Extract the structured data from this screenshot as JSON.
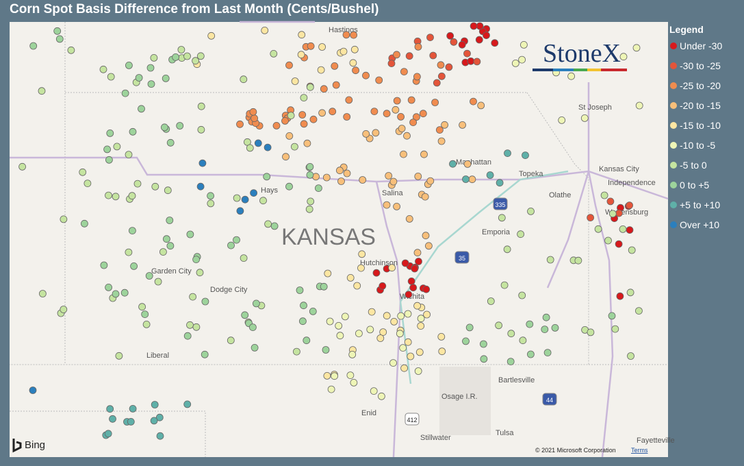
{
  "header": {
    "title": "Corn Spot Basis Difference from Last Month (Cents/Bushel)"
  },
  "legend": {
    "title": "Legend",
    "items": [
      {
        "label": "Under -30",
        "color": "#d7191c"
      },
      {
        "label": "-30 to -25",
        "color": "#e4553a"
      },
      {
        "label": "-25 to -20",
        "color": "#f08c4f"
      },
      {
        "label": "-20 to -15",
        "color": "#f8bf7a"
      },
      {
        "label": "-15 to -10",
        "color": "#fce6a2"
      },
      {
        "label": "-10 to -5",
        "color": "#eef5b6"
      },
      {
        "label": "-5 to 0",
        "color": "#c5e4a0"
      },
      {
        "label": "0 to +5",
        "color": "#9dd39b"
      },
      {
        "label": "+5 to +10",
        "color": "#5fb0a8"
      },
      {
        "label": "Over +10",
        "color": "#2b7fbd"
      }
    ]
  },
  "map": {
    "state_label": "KANSAS",
    "places": [
      "Hastings",
      "St Joseph",
      "Kansas City",
      "Independence",
      "Hays",
      "Salina",
      "Manhattan",
      "Topeka",
      "Olathe",
      "Warrensburg",
      "Emporia",
      "Garden City",
      "Dodge City",
      "Hutchinson",
      "Wichita",
      "Liberal",
      "Bartlesville",
      "Osage I.R.",
      "Enid",
      "Stillwater",
      "Tulsa",
      "Fayetteville"
    ],
    "highways": [
      "335",
      "35",
      "44",
      "412"
    ],
    "logo": "StoneX",
    "provider": "Bing",
    "copyright": "© 2021 Microsoft Corporation",
    "terms": "Terms"
  }
}
